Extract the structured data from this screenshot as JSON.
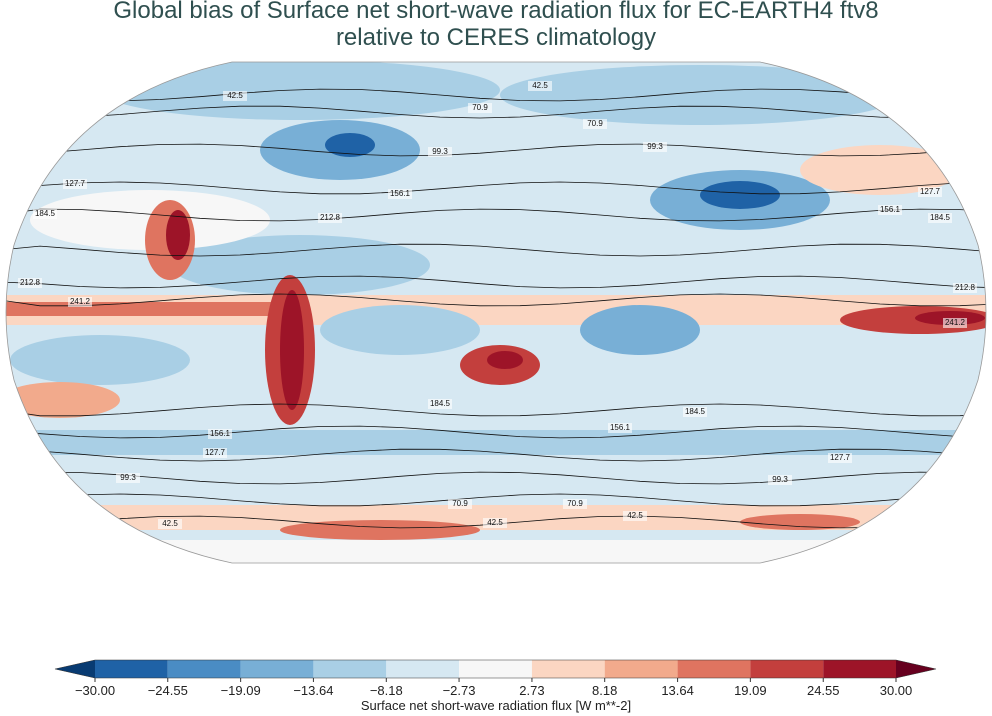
{
  "title": [
    "Global bias of Surface net short-wave radiation flux for EC-EARTH4 ftv8",
    "relative to CERES climatology"
  ],
  "contour_levels": [
    42.5,
    70.9,
    99.3,
    127.7,
    156.1,
    184.5,
    212.8,
    241.2
  ],
  "colorbar": {
    "label": "Surface net short-wave radiation flux [W m**-2]",
    "ticks": [
      {
        "value": -30,
        "label": "−30.00"
      },
      {
        "value": -24.55,
        "label": "−24.55"
      },
      {
        "value": -19.09,
        "label": "−19.09"
      },
      {
        "value": -13.64,
        "label": "−13.64"
      },
      {
        "value": -8.18,
        "label": "−8.18"
      },
      {
        "value": -2.73,
        "label": "−2.73"
      },
      {
        "value": 2.73,
        "label": "2.73"
      },
      {
        "value": 8.18,
        "label": "8.18"
      },
      {
        "value": 13.64,
        "label": "13.64"
      },
      {
        "value": 19.09,
        "label": "19.09"
      },
      {
        "value": 24.55,
        "label": "24.55"
      },
      {
        "value": 30,
        "label": "30.00"
      }
    ],
    "colors": [
      "#1f62a6",
      "#4a8cc4",
      "#78afd6",
      "#a9cfe5",
      "#d6e8f2",
      "#f7f7f7",
      "#fbd6c2",
      "#f2aa8c",
      "#df7460",
      "#c33f3d",
      "#9d1428"
    ],
    "under_color": "#083b72",
    "over_color": "#67001f"
  }
}
